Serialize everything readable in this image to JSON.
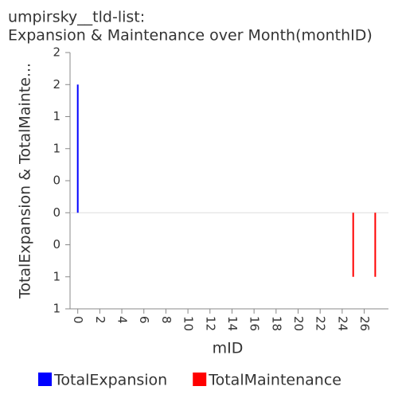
{
  "chart_data": {
    "type": "bar",
    "title": "umpirsky__tld-list:",
    "subtitle": "Expansion & Maintenance over Month(monthID)",
    "xlabel": "mID",
    "ylabel": "TotalExpansion & TotalMainte...",
    "xlim": [
      -0.7,
      28.2
    ],
    "xticks": [
      0,
      2,
      4,
      6,
      8,
      10,
      12,
      14,
      16,
      18,
      20,
      22,
      24,
      26
    ],
    "ylim": [
      -1.2,
      2.0
    ],
    "yticks": [
      {
        "value": 2.0,
        "label": "2"
      },
      {
        "value": 1.6,
        "label": "2"
      },
      {
        "value": 1.2,
        "label": "1"
      },
      {
        "value": 0.8,
        "label": "1"
      },
      {
        "value": 0.4,
        "label": "0"
      },
      {
        "value": 0,
        "label": "0"
      },
      {
        "value": -0.4,
        "label": "0"
      },
      {
        "value": -0.8,
        "label": "1"
      },
      {
        "value": -1.2,
        "label": "1"
      }
    ],
    "series": [
      {
        "name": "TotalExpansion",
        "color": "#0000ff",
        "x": [
          0
        ],
        "values": [
          1.6
        ]
      },
      {
        "name": "TotalMaintenance",
        "color": "#ff0000",
        "x": [
          25,
          27
        ],
        "values": [
          -0.8,
          -0.8
        ]
      }
    ]
  }
}
